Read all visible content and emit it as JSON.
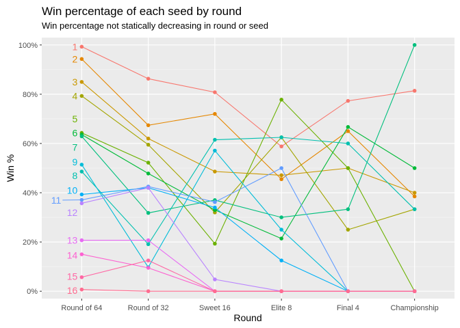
{
  "chart_data": {
    "type": "line",
    "title": "Win percentage of each seed by round",
    "subtitle": "Win percentage not statically decreasing in round or seed",
    "xlabel": "Round",
    "ylabel": "Win %",
    "categories": [
      "Round of 64",
      "Round of 32",
      "Sweet 16",
      "Elite 8",
      "Final 4",
      "Championship"
    ],
    "ylim": [
      -0.03,
      1.03
    ],
    "yticks": [
      0,
      0.2,
      0.4,
      0.6,
      0.8,
      1.0
    ],
    "ytick_labels": [
      "0%",
      "20%",
      "40%",
      "60%",
      "80%",
      "100%"
    ],
    "grid": true,
    "legend": "none (direct labels at left)",
    "series": [
      {
        "name": "1",
        "color": "#F8766D",
        "values": [
          0.993,
          0.863,
          0.808,
          0.588,
          0.773,
          0.814
        ]
      },
      {
        "name": "2",
        "color": "#E58700",
        "values": [
          0.943,
          0.674,
          0.72,
          0.455,
          0.65,
          0.385
        ]
      },
      {
        "name": "3",
        "color": "#C99800",
        "values": [
          0.85,
          0.62,
          0.486,
          0.471,
          0.5,
          0.4
        ]
      },
      {
        "name": "4",
        "color": "#A3A500",
        "values": [
          0.793,
          0.595,
          0.32,
          0.625,
          0.25,
          0.333
        ]
      },
      {
        "name": "5",
        "color": "#6BB100",
        "values": [
          0.643,
          0.522,
          0.193,
          0.778,
          0.5,
          0.0
        ]
      },
      {
        "name": "6",
        "color": "#00BA38",
        "values": [
          0.636,
          0.478,
          0.33,
          0.214,
          0.667,
          0.5
        ]
      },
      {
        "name": "7",
        "color": "#00BF7D",
        "values": [
          0.629,
          0.318,
          0.37,
          0.3,
          0.333,
          1.0
        ]
      },
      {
        "name": "8",
        "color": "#00C0AF",
        "values": [
          0.486,
          0.191,
          0.615,
          0.625,
          0.6,
          0.333
        ]
      },
      {
        "name": "9",
        "color": "#00BCD8",
        "values": [
          0.514,
          0.097,
          0.571,
          0.25,
          0.0,
          0.0
        ]
      },
      {
        "name": "10",
        "color": "#00B0F6",
        "values": [
          0.393,
          0.42,
          0.34,
          0.125,
          0.0,
          0.0
        ]
      },
      {
        "name": "11",
        "color": "#619CFF",
        "values": [
          0.371,
          0.425,
          0.362,
          0.5,
          0.0,
          0.0
        ]
      },
      {
        "name": "12",
        "color": "#B983FF",
        "values": [
          0.357,
          0.42,
          0.048,
          0.0,
          0.0,
          0.0
        ]
      },
      {
        "name": "13",
        "color": "#E76BF3",
        "values": [
          0.207,
          0.207,
          0.0,
          0.0,
          0.0,
          0.0
        ]
      },
      {
        "name": "14",
        "color": "#FD61D1",
        "values": [
          0.15,
          0.095,
          0.0,
          0.0,
          0.0,
          0.0
        ]
      },
      {
        "name": "15",
        "color": "#FF67A4",
        "values": [
          0.057,
          0.125,
          0.0,
          0.0,
          0.0,
          0.0
        ]
      },
      {
        "name": "16",
        "color": "#FF6C90",
        "values": [
          0.007,
          0.0,
          0.0,
          0.0,
          0.0,
          0.0
        ]
      }
    ],
    "label_values": [
      0.993,
      0.943,
      0.85,
      0.793,
      0.7,
      0.643,
      0.585,
      0.47,
      0.525,
      0.41,
      0.37,
      0.32,
      0.207,
      0.146,
      0.06,
      0.003
    ]
  }
}
